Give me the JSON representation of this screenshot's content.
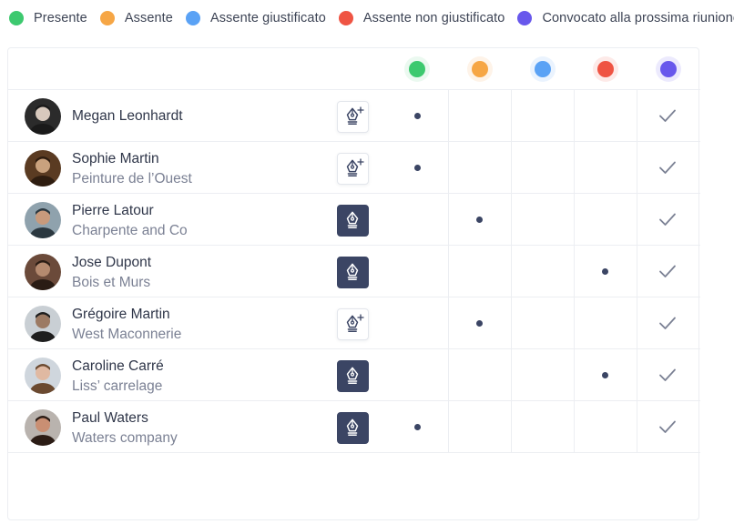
{
  "legend": [
    {
      "label": "Presente",
      "color": "#3dc96f"
    },
    {
      "label": "Assente",
      "color": "#f6a645"
    },
    {
      "label": "Assente giustificato",
      "color": "#5aa2f5"
    },
    {
      "label": "Assente non giustificato",
      "color": "#ef5443"
    },
    {
      "label": "Convocato alla prossima riunione",
      "color": "#6858ec"
    }
  ],
  "rows": [
    {
      "name": "Megan Leonhardt",
      "company": "",
      "signature": "add",
      "status": 0,
      "convocato": true
    },
    {
      "name": "Sophie Martin",
      "company": "Peinture de l’Ouest",
      "signature": "add",
      "status": 0,
      "convocato": true
    },
    {
      "name": "Pierre Latour",
      "company": "Charpente and Co",
      "signature": "signed",
      "status": 1,
      "convocato": true
    },
    {
      "name": "Jose Dupont",
      "company": "Bois et Murs",
      "signature": "signed",
      "status": 3,
      "convocato": true
    },
    {
      "name": "Grégoire Martin",
      "company": "West Maconnerie",
      "signature": "add",
      "status": 1,
      "convocato": true
    },
    {
      "name": "Caroline  Carré",
      "company": "Liss’ carrelage",
      "signature": "signed",
      "status": 3,
      "convocato": true
    },
    {
      "name": "Paul Waters",
      "company": "Waters company",
      "signature": "signed",
      "status": 0,
      "convocato": true
    }
  ]
}
